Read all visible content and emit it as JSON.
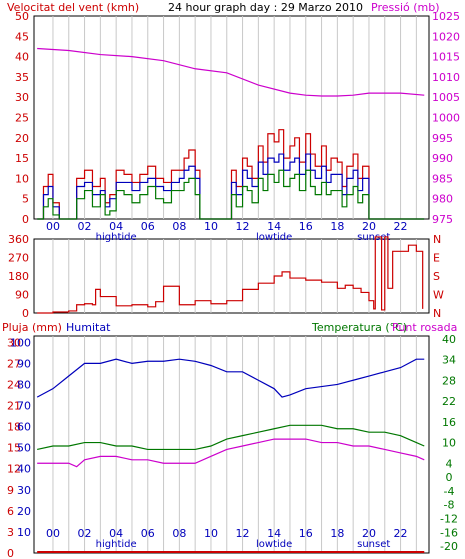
{
  "chart_data": [
    {
      "type": "line",
      "title": "24 hour graph day : 29 Marzo 2010",
      "ylabel_left": "Velocitat del vent (kmh)",
      "ylabel_right": "Pressió (mb)",
      "left_ticks": [
        "0",
        "5",
        "10",
        "15",
        "20",
        "25",
        "30",
        "35",
        "40",
        "45",
        "50"
      ],
      "right_ticks": [
        "975",
        "980",
        "985",
        "990",
        "995",
        "1000",
        "1005",
        "1010",
        "1015",
        "1020",
        "1025"
      ],
      "ylim_left": [
        0,
        50
      ],
      "ylim_right": [
        975,
        1025
      ],
      "x_ticks": [
        "00",
        "02",
        "04",
        "06",
        "08",
        "10",
        "12",
        "14",
        "16",
        "18",
        "20",
        "22"
      ],
      "markers": [
        {
          "label": "hightide",
          "hour": 4
        },
        {
          "label": "lowtide",
          "hour": 14
        },
        {
          "label": "sunset",
          "hour": 20.3
        }
      ],
      "grid": true,
      "series": [
        {
          "color": "#cc00cc",
          "axis": "right",
          "x": [
            -1,
            1,
            3,
            5,
            7,
            9,
            11,
            13,
            15,
            16,
            17,
            18,
            19,
            20,
            21,
            22,
            23.5
          ],
          "y": [
            1017,
            1016.5,
            1015.5,
            1015,
            1014,
            1012,
            1011,
            1008,
            1006,
            1005.5,
            1005.3,
            1005.3,
            1005.5,
            1006,
            1006,
            1006,
            1005.5
          ]
        },
        {
          "color": "#cc0000",
          "axis": "left",
          "x": [
            -1,
            -0.6,
            -0.3,
            0,
            0.4,
            0.8,
            1,
            1.5,
            2,
            2.5,
            3,
            3.3,
            3.6,
            4,
            4.5,
            5,
            5.5,
            6,
            6.5,
            7,
            7.5,
            8,
            8.3,
            8.6,
            9,
            9.3,
            9.6,
            10,
            10.5,
            11,
            11.3,
            11.6,
            12,
            12.3,
            12.6,
            13,
            13.3,
            13.6,
            14,
            14.3,
            14.6,
            15,
            15.3,
            15.6,
            16,
            16.3,
            16.6,
            17,
            17.3,
            17.6,
            18,
            18.3,
            18.6,
            19,
            19.3,
            19.6,
            20,
            20.3,
            20.6,
            21,
            22,
            23.5
          ],
          "y": [
            0,
            8,
            11,
            4,
            0,
            0,
            0,
            10,
            12,
            8,
            10,
            4,
            6,
            12,
            11,
            9,
            11,
            13,
            10,
            9,
            12,
            12,
            15,
            17,
            12,
            0,
            0,
            0,
            0,
            0,
            12,
            8,
            15,
            13,
            10,
            18,
            14,
            21,
            19,
            22,
            15,
            18,
            20,
            14,
            21,
            16,
            13,
            18,
            12,
            15,
            14,
            8,
            13,
            16,
            10,
            13,
            0,
            0,
            0,
            0,
            0,
            0
          ]
        },
        {
          "color": "#0000bb",
          "axis": "left",
          "x": [
            -1,
            -0.6,
            -0.3,
            0,
            0.4,
            0.8,
            1,
            1.5,
            2,
            2.5,
            3,
            3.3,
            3.6,
            4,
            4.5,
            5,
            5.5,
            6,
            6.5,
            7,
            7.5,
            8,
            8.3,
            8.6,
            9,
            9.3,
            9.6,
            10,
            10.5,
            11,
            11.3,
            11.6,
            12,
            12.3,
            12.6,
            13,
            13.3,
            13.6,
            14,
            14.3,
            14.6,
            15,
            15.3,
            15.6,
            16,
            16.3,
            16.6,
            17,
            17.3,
            17.6,
            18,
            18.3,
            18.6,
            19,
            19.3,
            19.6,
            20,
            20.3,
            20.6,
            21,
            22,
            23.5
          ],
          "y": [
            0,
            6,
            8,
            3,
            0,
            0,
            0,
            8,
            9,
            6,
            7,
            3,
            5,
            9,
            9,
            7,
            9,
            10,
            8,
            7,
            9,
            10,
            12,
            13,
            10,
            0,
            0,
            0,
            0,
            0,
            9,
            6,
            12,
            10,
            8,
            14,
            11,
            15,
            14,
            16,
            12,
            14,
            15,
            11,
            16,
            12,
            10,
            13,
            9,
            11,
            11,
            6,
            10,
            12,
            7,
            10,
            0,
            0,
            0,
            0,
            0,
            0
          ]
        },
        {
          "color": "#007700",
          "axis": "left",
          "x": [
            -1,
            -0.6,
            -0.3,
            0,
            0.4,
            0.8,
            1,
            1.5,
            2,
            2.5,
            3,
            3.3,
            3.6,
            4,
            4.5,
            5,
            5.5,
            6,
            6.5,
            7,
            7.5,
            8,
            8.3,
            8.6,
            9,
            9.3,
            9.6,
            10,
            10.5,
            11,
            11.3,
            11.6,
            12,
            12.3,
            12.6,
            13,
            13.3,
            13.6,
            14,
            14.3,
            14.6,
            15,
            15.3,
            15.6,
            16,
            16.3,
            16.6,
            17,
            17.3,
            17.6,
            18,
            18.3,
            18.6,
            19,
            19.3,
            19.6,
            20,
            20.3,
            20.6,
            21,
            22,
            23.5
          ],
          "y": [
            0,
            3,
            5,
            1,
            0,
            0,
            0,
            5,
            7,
            3,
            6,
            1,
            2,
            7,
            6,
            4,
            6,
            8,
            5,
            4,
            7,
            7,
            9,
            10,
            6,
            0,
            0,
            0,
            0,
            0,
            6,
            3,
            8,
            7,
            4,
            10,
            7,
            11,
            9,
            12,
            8,
            10,
            11,
            7,
            12,
            8,
            6,
            9,
            6,
            7,
            7,
            3,
            6,
            8,
            4,
            6,
            0,
            0,
            0,
            0,
            0,
            0
          ]
        }
      ]
    },
    {
      "type": "line",
      "left_ticks": [
        "0",
        "90",
        "180",
        "270",
        "360"
      ],
      "right_labels": [
        "N",
        "W",
        "S",
        "E",
        "N"
      ],
      "ylim": [
        0,
        360
      ],
      "series": [
        {
          "color": "#cc0000",
          "x": [
            -1,
            0,
            1,
            1.5,
            2,
            2.5,
            2.7,
            3,
            4,
            5,
            6,
            6.5,
            7,
            8,
            9,
            10,
            11,
            12,
            13,
            14,
            14.5,
            15,
            16,
            17,
            18,
            18.5,
            19,
            19.5,
            20,
            20.3,
            20.4,
            20.6,
            20.8,
            21,
            21.2,
            21.5,
            22,
            22.5,
            23,
            23.4
          ],
          "y": [
            0,
            5,
            10,
            40,
            45,
            40,
            115,
            80,
            35,
            40,
            30,
            55,
            130,
            40,
            60,
            45,
            60,
            115,
            145,
            180,
            200,
            170,
            160,
            150,
            120,
            135,
            120,
            100,
            60,
            20,
            370,
            370,
            15,
            370,
            120,
            300,
            300,
            330,
            300,
            20
          ]
        }
      ]
    },
    {
      "type": "line",
      "ylabel_left_1": "Pluja (mm)",
      "ylabel_left_2": "Humitat",
      "ylabel_right_1": "Temperatura (°C)",
      "ylabel_right_2": "Punt rosada",
      "left_ticks_rain": [
        "0",
        "3",
        "6",
        "9",
        "12",
        "15",
        "18",
        "21",
        "24",
        "27",
        "30"
      ],
      "left_ticks_hum": [
        "10",
        "20",
        "30",
        "40",
        "50",
        "60",
        "70",
        "80",
        "90",
        "100"
      ],
      "right_ticks": [
        "-20",
        "-16",
        "-12",
        "-8",
        "-4",
        "0",
        "4",
        "10",
        "16",
        "22",
        "28",
        "34",
        "40"
      ],
      "series": [
        {
          "name": "Humitat",
          "color": "#0000bb",
          "x": [
            -1,
            0,
            1,
            2,
            3,
            4,
            5,
            6,
            7,
            8,
            9,
            10,
            11,
            12,
            13,
            14,
            14.5,
            15,
            16,
            17,
            18,
            19,
            20,
            21,
            22,
            23,
            23.5
          ],
          "y": [
            74,
            78,
            84,
            90,
            90,
            92,
            90,
            91,
            91,
            92,
            91,
            89,
            86,
            86,
            82,
            78,
            74,
            75,
            78,
            79,
            80,
            82,
            84,
            86,
            88,
            92,
            92
          ]
        },
        {
          "name": "Temperatura",
          "color": "#007700",
          "x": [
            -1,
            0,
            1,
            2,
            3,
            4,
            5,
            6,
            7,
            8,
            9,
            10,
            11,
            12,
            13,
            14,
            15,
            16,
            17,
            18,
            19,
            20,
            21,
            22,
            23,
            23.5
          ],
          "y": [
            8,
            9,
            9,
            10,
            10,
            9,
            9,
            8,
            8,
            8,
            8,
            9,
            11,
            12,
            13,
            14,
            15,
            15,
            15,
            14,
            14,
            13,
            13,
            12,
            10,
            9
          ]
        },
        {
          "name": "Punt rosada",
          "color": "#cc00cc",
          "x": [
            -1,
            0,
            1,
            1.5,
            2,
            3,
            4,
            5,
            6,
            7,
            8,
            9,
            10,
            11,
            12,
            13,
            14,
            15,
            16,
            17,
            18,
            19,
            20,
            21,
            22,
            23,
            23.5
          ],
          "y": [
            4,
            4,
            4,
            3,
            5,
            6,
            6,
            5,
            5,
            4,
            4,
            4,
            6,
            8,
            9,
            10,
            11,
            11,
            11,
            10,
            10,
            9,
            9,
            8,
            7,
            6,
            5
          ]
        },
        {
          "name": "Pluja",
          "color": "#cc0000",
          "x": [
            -1,
            23.5
          ],
          "y": [
            0,
            0
          ]
        }
      ]
    }
  ]
}
